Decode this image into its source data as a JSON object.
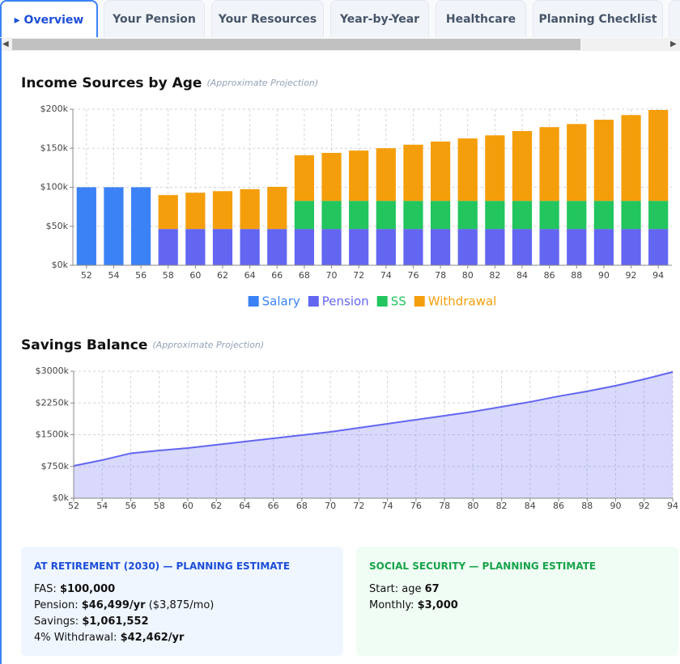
{
  "tabs": [
    "▸ Overview",
    "Your Pension",
    "Your Resources",
    "Year-by-Year",
    "Healthcare",
    "Planning Checklist"
  ],
  "active_tab": 0,
  "chart_data": [
    {
      "type": "bar",
      "stacked": true,
      "grid": true,
      "legend": "bottom",
      "title": "Income Sources by Age",
      "subtitle": "(Approximate Projection)",
      "categories": [
        52,
        54,
        56,
        58,
        60,
        62,
        64,
        66,
        68,
        70,
        72,
        74,
        76,
        78,
        80,
        82,
        84,
        86,
        88,
        90,
        92,
        94
      ],
      "series": [
        {
          "name": "Salary",
          "color": "#3b82f6",
          "values": [
            100000,
            100000,
            100000,
            null,
            null,
            null,
            null,
            null,
            null,
            null,
            null,
            null,
            null,
            null,
            null,
            null,
            null,
            null,
            null,
            null,
            null,
            null
          ]
        },
        {
          "name": "Pension",
          "color": "#6366f1",
          "values": [
            null,
            null,
            null,
            46499,
            46499,
            46499,
            46499,
            46499,
            46499,
            46499,
            46499,
            46499,
            46499,
            46499,
            46499,
            46499,
            46499,
            46499,
            46499,
            46499,
            46499,
            46499
          ]
        },
        {
          "name": "SS",
          "color": "#22c55e",
          "values": [
            null,
            null,
            null,
            null,
            null,
            null,
            null,
            null,
            36000,
            36000,
            36000,
            36000,
            36000,
            36000,
            36000,
            36000,
            36000,
            36000,
            36000,
            36000,
            36000,
            36000
          ]
        },
        {
          "name": "Withdrawal",
          "color": "#f59e0b",
          "values": [
            null,
            null,
            null,
            43500,
            46500,
            48500,
            51000,
            54000,
            58500,
            61500,
            64500,
            67500,
            72000,
            76000,
            80000,
            84000,
            89500,
            94500,
            98500,
            104000,
            110000,
            116500
          ]
        }
      ],
      "ylim": [
        0,
        200000
      ],
      "yticks": [
        {
          "value": 0,
          "label": "$0k"
        },
        {
          "value": 50000,
          "label": "$50k"
        },
        {
          "value": 100000,
          "label": "$100k"
        },
        {
          "value": 150000,
          "label": "$150k"
        },
        {
          "value": 200000,
          "label": "$200k"
        }
      ]
    },
    {
      "type": "area",
      "grid": true,
      "title": "Savings Balance",
      "subtitle": "(Approximate Projection)",
      "x": [
        52,
        54,
        56,
        58,
        60,
        62,
        64,
        66,
        68,
        70,
        72,
        74,
        76,
        78,
        80,
        82,
        84,
        86,
        88,
        90,
        92,
        94
      ],
      "series": [
        {
          "name": "Savings",
          "color": "#6366f1",
          "values": [
            765000,
            900000,
            1061552,
            1128000,
            1185000,
            1261000,
            1338000,
            1414000,
            1490000,
            1567000,
            1663000,
            1758000,
            1854000,
            1950000,
            2045000,
            2160000,
            2275000,
            2409000,
            2524000,
            2658000,
            2811000,
            2983000
          ]
        }
      ],
      "xlim": [
        52,
        94
      ],
      "xticks": [
        52,
        54,
        56,
        58,
        60,
        62,
        64,
        66,
        68,
        70,
        72,
        74,
        76,
        78,
        80,
        82,
        84,
        86,
        88,
        90,
        92,
        94
      ],
      "ylim": [
        0,
        3000000
      ],
      "yticks": [
        {
          "value": 0,
          "label": "$0k"
        },
        {
          "value": 750000,
          "label": "$750k"
        },
        {
          "value": 1500000,
          "label": "$1500k"
        },
        {
          "value": 2250000,
          "label": "$2250k"
        },
        {
          "value": 3000000,
          "label": "$3000k"
        }
      ]
    }
  ],
  "cards": [
    {
      "title": "AT RETIREMENT (2030) — PLANNING ESTIMATE",
      "rows": [
        {
          "label": "FAS:",
          "value": "$100,000"
        },
        {
          "label": "Pension:",
          "value": "$46,499/yr",
          "note": "($3,875/mo)"
        },
        {
          "label": "Savings:",
          "value": "$1,061,552"
        },
        {
          "label": "4% Withdrawal:",
          "value": "$42,462/yr"
        }
      ]
    },
    {
      "title": "SOCIAL SECURITY — PLANNING ESTIMATE",
      "rows": [
        {
          "label": "Start: age",
          "value": "67"
        },
        {
          "label": "Monthly:",
          "value": "$3,000"
        }
      ]
    }
  ]
}
